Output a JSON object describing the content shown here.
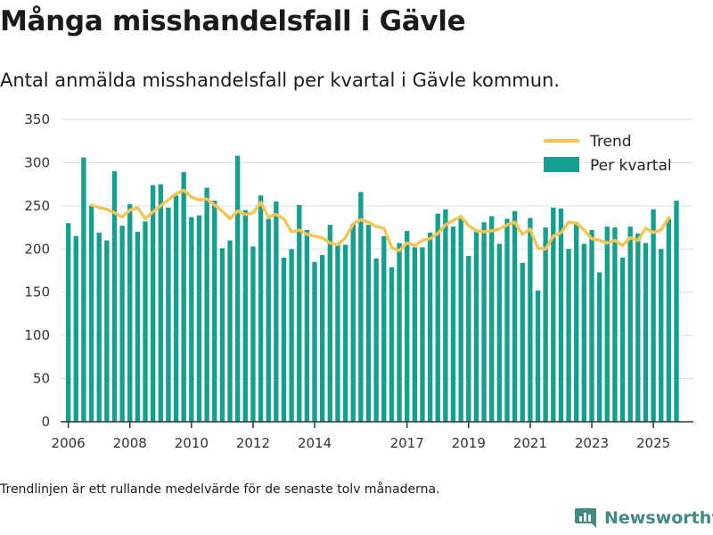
{
  "header": {
    "title": "Många misshandelsfall i Gävle",
    "subtitle": "Antal anmälda misshandelsfall per kvartal i Gävle kommun."
  },
  "footer": {
    "note": "Trendlinjen är ett rullande medelvärde för de senaste tolv månaderna.",
    "brand": "Newsworthy"
  },
  "colors": {
    "bar": "#14a091",
    "trend": "#f6c453",
    "grid": "#dddddd",
    "axis": "#333333",
    "brand": "#3f8a82"
  },
  "chart_data": {
    "type": "bar",
    "title": "Antal anmälda misshandelsfall per kvartal i Gävle kommun.",
    "xlabel": "",
    "ylabel": "",
    "ylim": [
      0,
      350
    ],
    "yticks": [
      0,
      50,
      100,
      150,
      200,
      250,
      300,
      350
    ],
    "xlim": [
      2005.75,
      2026.3
    ],
    "xticks": [
      2006,
      2008,
      2010,
      2012,
      2014,
      2017,
      2019,
      2021,
      2023,
      2025
    ],
    "legend": {
      "position": "top-right",
      "entries": [
        "Trend",
        "Per kvartal"
      ]
    },
    "series": [
      {
        "name": "Per kvartal",
        "type": "bar",
        "start": 2006.0,
        "step": 0.25,
        "values": [
          230,
          215,
          306,
          250,
          219,
          210,
          290,
          227,
          252,
          220,
          232,
          274,
          275,
          248,
          262,
          289,
          237,
          239,
          271,
          256,
          201,
          210,
          308,
          245,
          203,
          262,
          235,
          255,
          190,
          200,
          251,
          222,
          185,
          193,
          228,
          206,
          205,
          229,
          266,
          228,
          189,
          215,
          179,
          207,
          221,
          202,
          202,
          219,
          241,
          246,
          226,
          238,
          192,
          220,
          231,
          238,
          206,
          235,
          244,
          184,
          236,
          152,
          225,
          248,
          247,
          200,
          231,
          206,
          222,
          173,
          226,
          225,
          190,
          226,
          218,
          207,
          246,
          200,
          235,
          256
        ]
      },
      {
        "name": "Trend",
        "type": "line",
        "start": 2006.75,
        "step": 0.25,
        "values": [
          251,
          248,
          246,
          242,
          237,
          245,
          248,
          235,
          243,
          250,
          257,
          264,
          268,
          260,
          257,
          258,
          251,
          244,
          235,
          244,
          240,
          242,
          254,
          237,
          240,
          235,
          220,
          222,
          217,
          215,
          213,
          207,
          205,
          213,
          229,
          234,
          231,
          226,
          224,
          202,
          198,
          207,
          204,
          210,
          212,
          218,
          228,
          233,
          238,
          227,
          221,
          220,
          221,
          223,
          228,
          231,
          217,
          223,
          201,
          200,
          215,
          219,
          231,
          230,
          222,
          212,
          210,
          207,
          210,
          204,
          213,
          210,
          224,
          219,
          222,
          236
        ]
      }
    ]
  }
}
